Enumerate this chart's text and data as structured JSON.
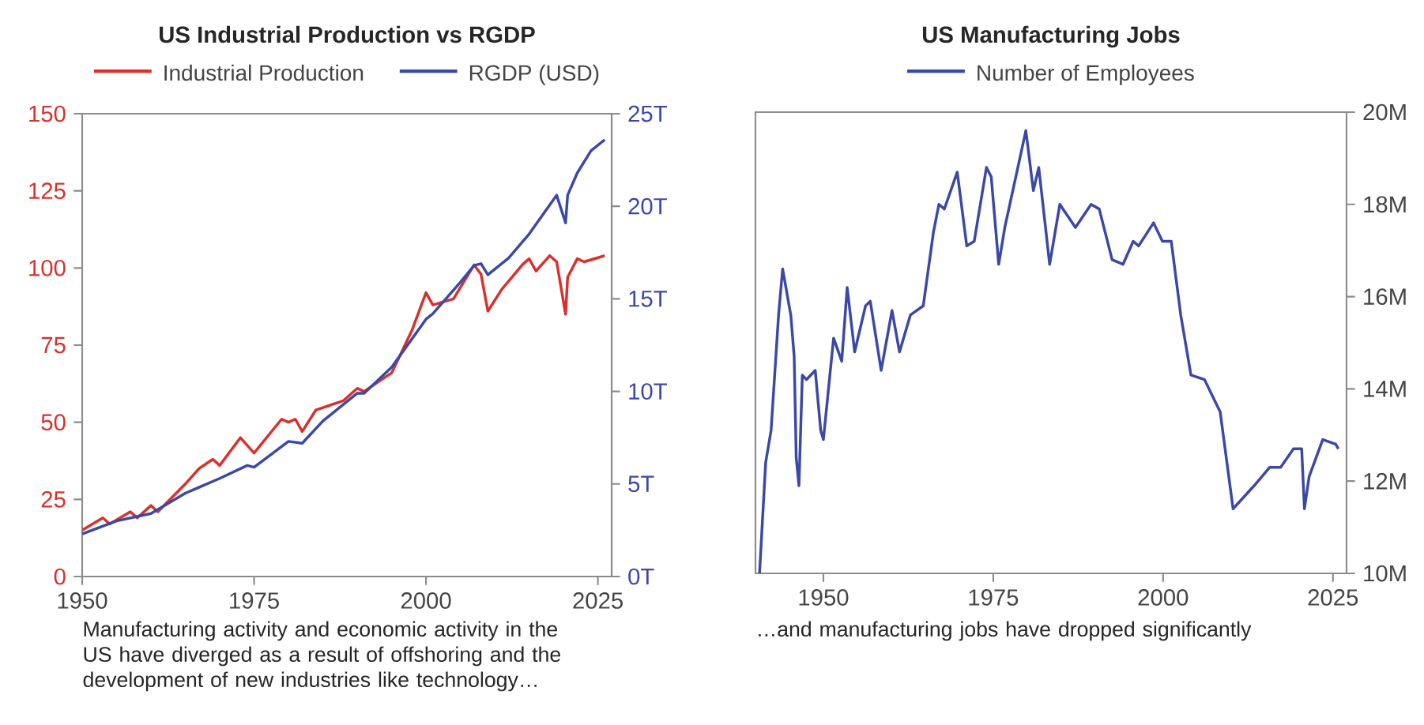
{
  "chart_data": [
    {
      "type": "line",
      "title": "US Industrial Production vs RGDP",
      "legend": "top",
      "xlim": [
        1950,
        2027
      ],
      "xticks": [
        1950,
        1975,
        2000,
        2025
      ],
      "ylim": [
        0,
        150
      ],
      "yticks": [
        0,
        25,
        50,
        75,
        100,
        125,
        150
      ],
      "y2lim": [
        0,
        25
      ],
      "y2ticks": [
        {
          "value": 0,
          "label": "0T"
        },
        {
          "value": 5,
          "label": "5T"
        },
        {
          "value": 10,
          "label": "10T"
        },
        {
          "value": 15,
          "label": "15T"
        },
        {
          "value": 20,
          "label": "20T"
        },
        {
          "value": 25,
          "label": "25T"
        }
      ],
      "series": [
        {
          "name": "Industrial Production",
          "color": "#d9302c",
          "x": [
            1950,
            1953,
            1954,
            1957,
            1958,
            1960,
            1961,
            1965,
            1967,
            1969,
            1970,
            1973,
            1975,
            1979,
            1980,
            1981,
            1982,
            1984,
            1988,
            1990,
            1991,
            1995,
            1998,
            2000,
            2001,
            2004,
            2007,
            2008,
            2009,
            2011,
            2014,
            2015,
            2016,
            2018,
            2019,
            2020.3,
            2020.6,
            2022,
            2023,
            2026
          ],
          "values": [
            15,
            19,
            17,
            21,
            19,
            23,
            21,
            30,
            35,
            38,
            36,
            45,
            40,
            51,
            50,
            51,
            47,
            54,
            57,
            61,
            60,
            66,
            80,
            92,
            88,
            90,
            101,
            98,
            86,
            93,
            101,
            103,
            99,
            104,
            102,
            85,
            97,
            103,
            102,
            104
          ]
        },
        {
          "name": "RGDP (USD)",
          "color": "#3a48a8",
          "axis": "y2",
          "x": [
            1950,
            1955,
            1960,
            1965,
            1970,
            1974,
            1975,
            1980,
            1982,
            1985,
            1990,
            1991,
            1995,
            2000,
            2001,
            2005,
            2007,
            2008,
            2009,
            2012,
            2015,
            2019,
            2020.3,
            2020.6,
            2022,
            2024,
            2026
          ],
          "values": [
            2.3,
            3,
            3.4,
            4.5,
            5.3,
            6,
            5.9,
            7.3,
            7.2,
            8.4,
            9.9,
            9.9,
            11.3,
            13.9,
            14.2,
            15.9,
            16.8,
            16.9,
            16.3,
            17.2,
            18.5,
            20.6,
            19.1,
            20.6,
            21.8,
            23,
            23.6
          ]
        }
      ],
      "annotations": [
        "Manufacturing activity and economic activity in the US have diverged as a result of offshoring and the development of new industries like technology…"
      ]
    },
    {
      "type": "line",
      "title": "US Manufacturing Jobs",
      "legend": "top",
      "xlim": [
        1940,
        2027
      ],
      "xticks": [
        1950,
        1975,
        2000,
        2025
      ],
      "y2lim": [
        10,
        20
      ],
      "y2ticks": [
        {
          "value": 10,
          "label": "10M"
        },
        {
          "value": 12,
          "label": "12M"
        },
        {
          "value": 14,
          "label": "14M"
        },
        {
          "value": 16,
          "label": "16M"
        },
        {
          "value": 18,
          "label": "18M"
        },
        {
          "value": 20,
          "label": "20M"
        }
      ],
      "series": [
        {
          "name": "Number of Employees",
          "color": "#3a48a8",
          "axis": "y2",
          "x": [
            1940.6,
            1941.5,
            1942.3,
            1943.4,
            1944.0,
            1945.2,
            1945.7,
            1946.0,
            1946.4,
            1946.9,
            1947.5,
            1948.8,
            1949.6,
            1950,
            1951.5,
            1952.7,
            1953.5,
            1954.6,
            1956.2,
            1956.9,
            1958.5,
            1960.1,
            1961.2,
            1962.8,
            1964.7,
            1966.2,
            1967,
            1967.8,
            1969.7,
            1971.1,
            1972.2,
            1974,
            1974.7,
            1975.8,
            1976.7,
            1979.8,
            1980.9,
            1981.7,
            1983.3,
            1984.8,
            1987.1,
            1989.4,
            1990.6,
            1992.5,
            1994.1,
            1995.6,
            1996.4,
            1998.6,
            1999.9,
            2001.2,
            2002.6,
            2004.1,
            2006.1,
            2008.4,
            2010.3,
            2013.4,
            2015.7,
            2017.3,
            2019.2,
            2020.4,
            2020.8,
            2021.5,
            2023.5,
            2025.4,
            2025.8
          ],
          "values": [
            10.0,
            12.4,
            13.1,
            15.6,
            16.6,
            15.6,
            14.7,
            12.5,
            11.9,
            14.3,
            14.2,
            14.4,
            13.1,
            12.9,
            15.1,
            14.6,
            16.2,
            14.8,
            15.8,
            15.9,
            14.4,
            15.7,
            14.8,
            15.6,
            15.8,
            17.4,
            18.0,
            17.9,
            18.7,
            17.1,
            17.2,
            18.8,
            18.6,
            16.7,
            17.5,
            19.6,
            18.3,
            18.8,
            16.7,
            18.0,
            17.5,
            18.0,
            17.9,
            16.8,
            16.7,
            17.2,
            17.1,
            17.6,
            17.2,
            17.2,
            15.6,
            14.3,
            14.2,
            13.5,
            11.4,
            11.9,
            12.3,
            12.3,
            12.7,
            12.7,
            11.4,
            12.1,
            12.9,
            12.8,
            12.7
          ]
        }
      ],
      "annotations": [
        "…and manufacturing jobs have dropped significantly"
      ]
    }
  ]
}
